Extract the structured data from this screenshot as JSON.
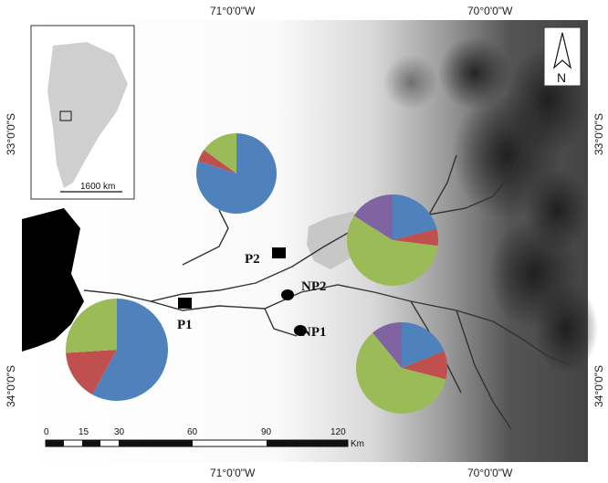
{
  "map": {
    "top_longitudes": [
      "71°0'0\"W",
      "70°0'0\"W"
    ],
    "bottom_longitudes": [
      "71°0'0\"W",
      "70°0'0\"W"
    ],
    "left_latitudes": [
      "33°0'0\"S",
      "34°0'0\"S"
    ],
    "right_latitudes": [
      "33°0'0\"S",
      "34°0'0\"S"
    ],
    "north_label": "N",
    "inset_scale_label": "1600 km",
    "scale_ticks": [
      "0",
      "15",
      "30",
      "60",
      "90",
      "120"
    ],
    "scale_unit": "Km",
    "sites": [
      {
        "id": "P1",
        "label": "P1",
        "marker": "square"
      },
      {
        "id": "P2",
        "label": "P2",
        "marker": "square"
      },
      {
        "id": "NP1",
        "label": "NP1",
        "marker": "circle"
      },
      {
        "id": "NP2",
        "label": "NP2",
        "marker": "circle"
      }
    ],
    "category_colors": {
      "blue": "#4f81bd",
      "red": "#c0504d",
      "green": "#9bbb59",
      "purple": "#8064a2"
    },
    "pie_charts": [
      {
        "site": "P2",
        "values": [
          {
            "color": "blue",
            "value": 0.8
          },
          {
            "color": "red",
            "value": 0.05
          },
          {
            "color": "green",
            "value": 0.15
          }
        ]
      },
      {
        "site": "P1",
        "values": [
          {
            "color": "blue",
            "value": 0.58
          },
          {
            "color": "red",
            "value": 0.16
          },
          {
            "color": "green",
            "value": 0.26
          }
        ]
      },
      {
        "site": "NP2",
        "values": [
          {
            "color": "blue",
            "value": 0.21
          },
          {
            "color": "red",
            "value": 0.06
          },
          {
            "color": "green",
            "value": 0.57
          },
          {
            "color": "purple",
            "value": 0.16
          }
        ]
      },
      {
        "site": "NP1",
        "values": [
          {
            "color": "blue",
            "value": 0.19
          },
          {
            "color": "red",
            "value": 0.1
          },
          {
            "color": "green",
            "value": 0.6
          },
          {
            "color": "purple",
            "value": 0.11
          }
        ]
      }
    ]
  }
}
